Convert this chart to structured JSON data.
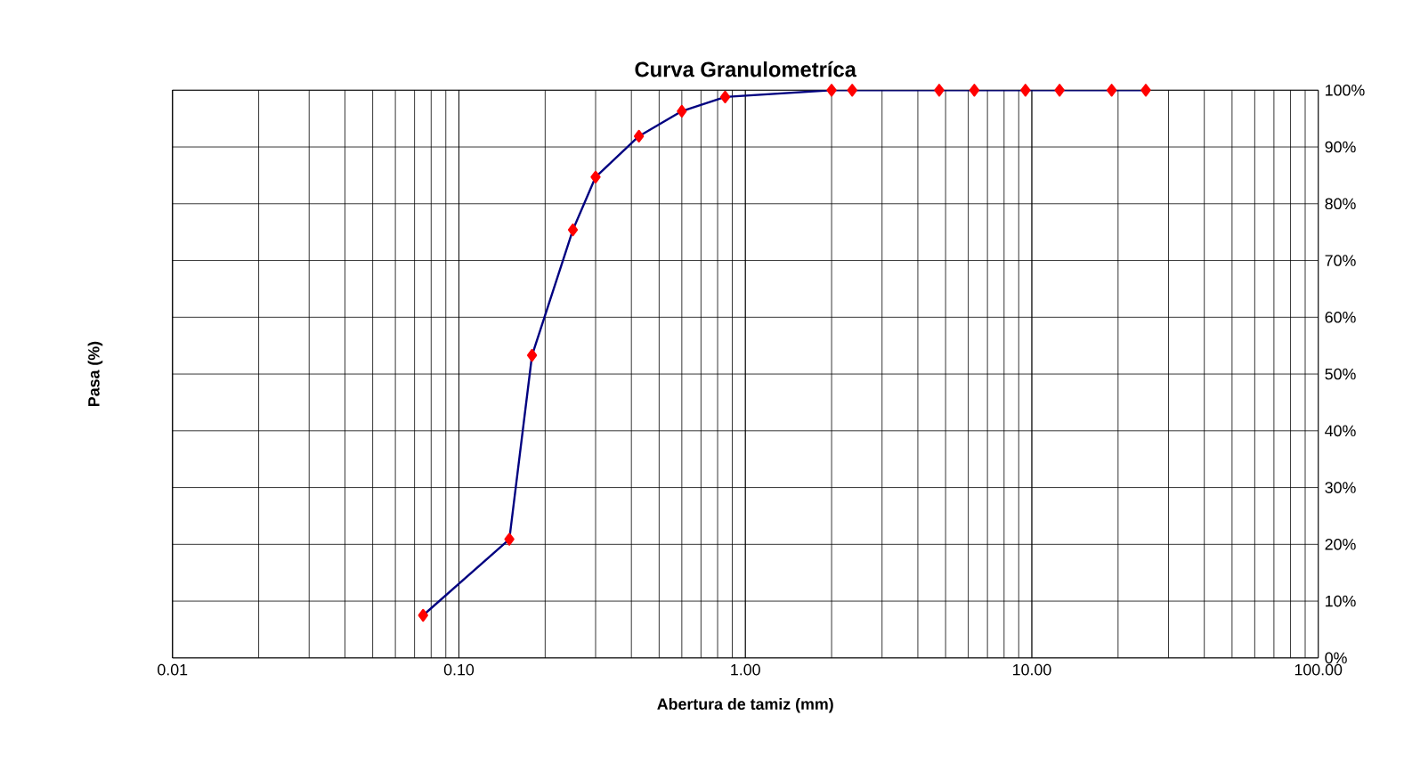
{
  "chart_data": {
    "type": "line",
    "title": "Curva Granulometríca",
    "xlabel": "Abertura de tamiz (mm)",
    "ylabel": "Pasa (%)",
    "x": [
      0.075,
      0.15,
      0.18,
      0.25,
      0.3,
      0.425,
      0.6,
      0.85,
      2.0,
      2.36,
      4.75,
      6.3,
      9.5,
      12.5,
      19,
      25
    ],
    "series": [
      {
        "color": "#000080",
        "colors": [
          "#ff0000",
          "#ff0000",
          "#ff0000",
          "#ff0000",
          "#ff0000",
          "#ff0000",
          "#ff0000",
          "#ff0000",
          "#ff0000",
          "#ff0000",
          "#ff0000",
          "#ff0000",
          "#ff0000",
          "#ff0000",
          "#ff0000",
          "#ff0000"
        ],
        "values": [
          7.5,
          20.9,
          53.3,
          75.4,
          84.7,
          91.9,
          96.3,
          98.8,
          100,
          100,
          100,
          100,
          100,
          100,
          100,
          100
        ]
      }
    ],
    "xlim": [
      0.01,
      100
    ],
    "ylim": [
      0,
      100
    ],
    "xticks": [
      {
        "value": 0.01,
        "label": "0.01"
      },
      {
        "value": 0.1,
        "label": "0.10"
      },
      {
        "value": 1,
        "label": "1.00"
      },
      {
        "value": 10,
        "label": "10.00"
      },
      {
        "value": 100,
        "label": "100.00"
      }
    ],
    "yticks": [
      {
        "value": 0,
        "label": "0%"
      },
      {
        "value": 10,
        "label": "10%"
      },
      {
        "value": 20,
        "label": "20%"
      },
      {
        "value": 30,
        "label": "30%"
      },
      {
        "value": 40,
        "label": "40%"
      },
      {
        "value": 50,
        "label": "50%"
      },
      {
        "value": 60,
        "label": "60%"
      },
      {
        "value": 70,
        "label": "70%"
      },
      {
        "value": 80,
        "label": "80%"
      },
      {
        "value": 90,
        "label": "90%"
      },
      {
        "value": 100,
        "label": "100%"
      }
    ],
    "log": "x",
    "grid": true,
    "marker": "diamond",
    "line_style": "solid"
  }
}
